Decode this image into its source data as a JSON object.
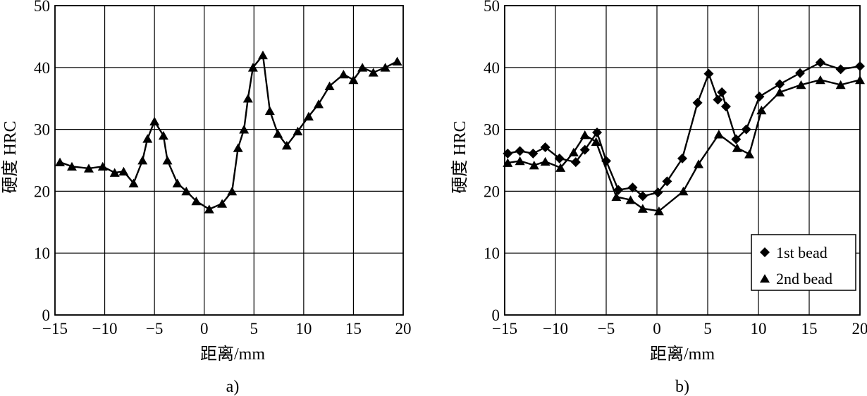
{
  "chart_data": [
    {
      "type": "line",
      "panel_label": "a)",
      "xlabel": "距离/mm",
      "ylabel": "硬度  HRC",
      "xlim": [
        -15,
        20
      ],
      "ylim": [
        0,
        50
      ],
      "x_ticks": [
        "-15",
        "-10",
        "-5",
        "0",
        "5",
        "10",
        "15",
        "20"
      ],
      "y_ticks": [
        "0",
        "10",
        "20",
        "30",
        "40",
        "50"
      ],
      "grid": true,
      "series": [
        {
          "marker": "triangle",
          "color": "#000000",
          "x": [
            -14.5,
            -13.3,
            -11.6,
            -10.2,
            -9.0,
            -8.1,
            -7.1,
            -6.2,
            -5.7,
            -5.0,
            -4.1,
            -3.7,
            -2.7,
            -1.8,
            -0.8,
            0.5,
            1.8,
            2.8,
            3.4,
            4.0,
            4.4,
            4.9,
            5.9,
            6.6,
            7.4,
            8.3,
            9.4,
            10.5,
            11.5,
            12.6,
            14.0,
            15.0,
            15.9,
            17.0,
            18.2,
            19.4
          ],
          "y": [
            24.7,
            24.0,
            23.7,
            24.0,
            23.0,
            23.2,
            21.3,
            25.0,
            28.5,
            31.3,
            29.0,
            25.0,
            21.3,
            20.0,
            18.4,
            17.1,
            18.0,
            20.0,
            27.0,
            30.0,
            35.0,
            40.0,
            42.0,
            33.0,
            29.3,
            27.4,
            29.7,
            32.1,
            34.1,
            37.0,
            38.9,
            38.0,
            40.0,
            39.2,
            40.0,
            41.0
          ]
        }
      ]
    },
    {
      "type": "line",
      "panel_label": "b)",
      "xlabel": "距离/mm",
      "ylabel": "硬度  HRC",
      "xlim": [
        -15,
        20
      ],
      "ylim": [
        0,
        50
      ],
      "x_ticks": [
        "-15",
        "-10",
        "-5",
        "0",
        "5",
        "10",
        "15",
        "20"
      ],
      "y_ticks": [
        "0",
        "10",
        "20",
        "30",
        "40",
        "50"
      ],
      "grid": true,
      "legend": {
        "placement": "bottom-right",
        "items": [
          "1st bead",
          "2nd bead"
        ]
      },
      "series": [
        {
          "name": "1st bead",
          "marker": "diamond",
          "color": "#000000",
          "x": [
            -14.7,
            -13.5,
            -12.2,
            -11.0,
            -9.6,
            -8.0,
            -7.1,
            -5.9,
            -5.0,
            -3.8,
            -2.4,
            -1.4,
            0.1,
            1.0,
            2.5,
            4.0,
            5.1,
            6.0,
            6.4,
            6.8,
            7.8,
            8.8,
            10.1,
            12.1,
            14.1,
            16.1,
            18.1,
            20.0
          ],
          "y": [
            26.1,
            26.5,
            26.1,
            27.1,
            25.3,
            24.7,
            26.7,
            29.5,
            24.9,
            20.2,
            20.6,
            19.2,
            19.8,
            21.6,
            25.3,
            34.3,
            39.0,
            34.8,
            36.0,
            33.7,
            28.4,
            30.0,
            35.3,
            37.3,
            39.1,
            40.8,
            39.7,
            40.2
          ]
        },
        {
          "name": "2nd bead",
          "marker": "triangle",
          "color": "#000000",
          "x": [
            -14.7,
            -13.5,
            -12.1,
            -11.0,
            -9.5,
            -8.2,
            -7.1,
            -6.0,
            -4.0,
            -2.6,
            -1.4,
            0.2,
            2.6,
            4.1,
            6.1,
            7.9,
            9.1,
            10.3,
            12.1,
            14.2,
            16.1,
            18.1,
            20.0
          ],
          "y": [
            24.6,
            24.9,
            24.2,
            24.8,
            23.8,
            26.3,
            29.1,
            28.0,
            19.1,
            18.6,
            17.2,
            16.8,
            20.0,
            24.4,
            29.2,
            27.0,
            26.0,
            33.1,
            36.0,
            37.2,
            38.0,
            37.2,
            38.0
          ]
        }
      ]
    }
  ]
}
